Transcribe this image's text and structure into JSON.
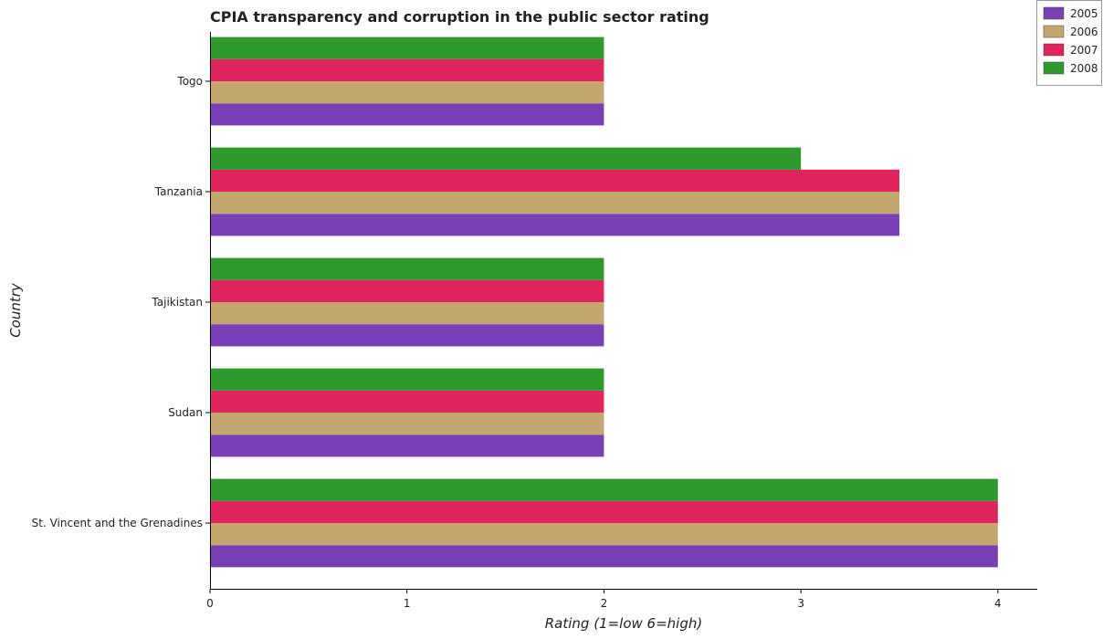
{
  "chart_data": {
    "type": "bar",
    "orientation": "horizontal",
    "title": "CPIA transparency and corruption in the public sector rating",
    "xlabel": "Rating (1=low 6=high)",
    "ylabel": "Country",
    "categories": [
      "St. Vincent and the Grenadines",
      "Sudan",
      "Tajikistan",
      "Tanzania",
      "Togo"
    ],
    "series": [
      {
        "name": "2005",
        "color": "#7b3fb5",
        "values": [
          4.0,
          2.0,
          2.0,
          3.5,
          2.0
        ]
      },
      {
        "name": "2006",
        "color": "#c4a76e",
        "values": [
          4.0,
          2.0,
          2.0,
          3.5,
          2.0
        ]
      },
      {
        "name": "2007",
        "color": "#e0245e",
        "values": [
          4.0,
          2.0,
          2.0,
          3.5,
          2.0
        ]
      },
      {
        "name": "2008",
        "color": "#2e9a2e",
        "values": [
          4.0,
          2.0,
          2.0,
          3.0,
          2.0
        ]
      }
    ],
    "xlim": [
      0,
      4.2
    ],
    "xticks": [
      0,
      1,
      2,
      3,
      4
    ],
    "grid": false,
    "legend_position": "top-right"
  }
}
